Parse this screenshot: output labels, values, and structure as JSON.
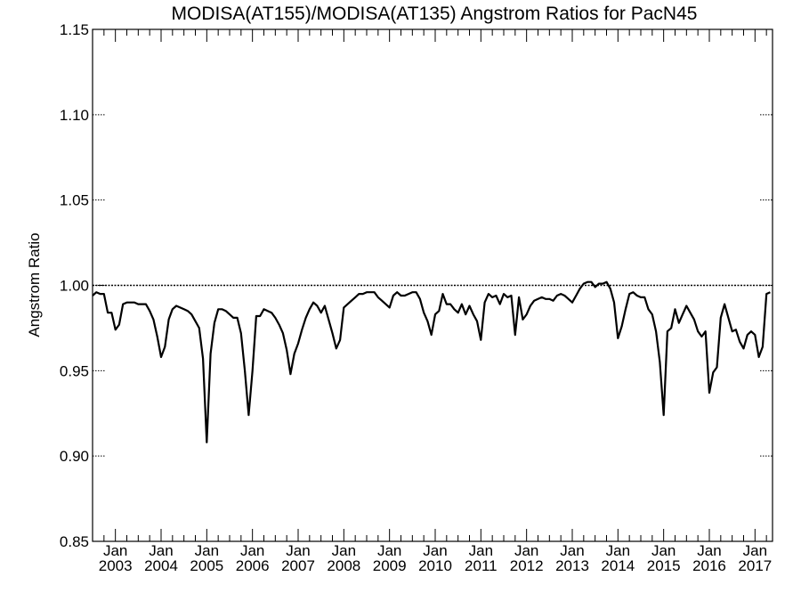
{
  "chart_data": {
    "type": "line",
    "title": "MODISA(AT155)/MODISA(AT135)  Angstrom Ratios for PacN45",
    "xlabel": "",
    "ylabel": "Angstrom Ratio",
    "xlim": [
      "2002-07",
      "2017-04"
    ],
    "ylim": [
      0.85,
      1.15
    ],
    "yticks": [
      "0.85",
      "0.90",
      "0.95",
      "1.00",
      "1.05",
      "1.10",
      "1.15"
    ],
    "ytick_values": [
      0.85,
      0.9,
      0.95,
      1.0,
      1.05,
      1.1,
      1.15
    ],
    "xticks": [
      {
        "date": "2003-01",
        "month": "Jan",
        "year": "2003"
      },
      {
        "date": "2004-01",
        "month": "Jan",
        "year": "2004"
      },
      {
        "date": "2005-01",
        "month": "Jan",
        "year": "2005"
      },
      {
        "date": "2006-01",
        "month": "Jan",
        "year": "2006"
      },
      {
        "date": "2007-01",
        "month": "Jan",
        "year": "2007"
      },
      {
        "date": "2008-01",
        "month": "Jan",
        "year": "2008"
      },
      {
        "date": "2009-01",
        "month": "Jan",
        "year": "2009"
      },
      {
        "date": "2010-01",
        "month": "Jan",
        "year": "2010"
      },
      {
        "date": "2011-01",
        "month": "Jan",
        "year": "2011"
      },
      {
        "date": "2012-01",
        "month": "Jan",
        "year": "2012"
      },
      {
        "date": "2013-01",
        "month": "Jan",
        "year": "2013"
      },
      {
        "date": "2014-01",
        "month": "Jan",
        "year": "2014"
      },
      {
        "date": "2015-01",
        "month": "Jan",
        "year": "2015"
      },
      {
        "date": "2016-01",
        "month": "Jan",
        "year": "2016"
      },
      {
        "date": "2017-01",
        "month": "Jan",
        "year": "2017"
      }
    ],
    "reference_line": 1.0,
    "grid": false,
    "series": [
      {
        "color": "#000000",
        "points": [
          [
            "2002-07",
            0.994
          ],
          [
            "2002-08",
            0.996
          ],
          [
            "2002-09",
            0.995
          ],
          [
            "2002-10",
            0.995
          ],
          [
            "2002-11",
            0.984
          ],
          [
            "2002-12",
            0.984
          ],
          [
            "2003-01",
            0.974
          ],
          [
            "2003-02",
            0.977
          ],
          [
            "2003-03",
            0.989
          ],
          [
            "2003-04",
            0.99
          ],
          [
            "2003-05",
            0.99
          ],
          [
            "2003-06",
            0.99
          ],
          [
            "2003-07",
            0.989
          ],
          [
            "2003-08",
            0.989
          ],
          [
            "2003-09",
            0.989
          ],
          [
            "2003-10",
            0.985
          ],
          [
            "2003-11",
            0.98
          ],
          [
            "2003-12",
            0.97
          ],
          [
            "2004-01",
            0.958
          ],
          [
            "2004-02",
            0.964
          ],
          [
            "2004-03",
            0.98
          ],
          [
            "2004-04",
            0.986
          ],
          [
            "2004-05",
            0.988
          ],
          [
            "2004-06",
            0.987
          ],
          [
            "2004-07",
            0.986
          ],
          [
            "2004-08",
            0.985
          ],
          [
            "2004-09",
            0.983
          ],
          [
            "2004-10",
            0.979
          ],
          [
            "2004-11",
            0.975
          ],
          [
            "2004-12",
            0.957
          ],
          [
            "2005-01",
            0.908
          ],
          [
            "2005-02",
            0.96
          ],
          [
            "2005-03",
            0.978
          ],
          [
            "2005-04",
            0.986
          ],
          [
            "2005-05",
            0.986
          ],
          [
            "2005-06",
            0.985
          ],
          [
            "2005-07",
            0.983
          ],
          [
            "2005-08",
            0.981
          ],
          [
            "2005-09",
            0.981
          ],
          [
            "2005-10",
            0.972
          ],
          [
            "2005-11",
            0.95
          ],
          [
            "2005-12",
            0.924
          ],
          [
            "2006-01",
            0.95
          ],
          [
            "2006-02",
            0.982
          ],
          [
            "2006-03",
            0.982
          ],
          [
            "2006-04",
            0.986
          ],
          [
            "2006-05",
            0.985
          ],
          [
            "2006-06",
            0.984
          ],
          [
            "2006-07",
            0.981
          ],
          [
            "2006-08",
            0.977
          ],
          [
            "2006-09",
            0.972
          ],
          [
            "2006-10",
            0.962
          ],
          [
            "2006-11",
            0.948
          ],
          [
            "2006-12",
            0.96
          ],
          [
            "2007-01",
            0.966
          ],
          [
            "2007-02",
            0.974
          ],
          [
            "2007-03",
            0.981
          ],
          [
            "2007-04",
            0.986
          ],
          [
            "2007-05",
            0.99
          ],
          [
            "2007-06",
            0.988
          ],
          [
            "2007-07",
            0.984
          ],
          [
            "2007-08",
            0.988
          ],
          [
            "2007-09",
            0.98
          ],
          [
            "2007-10",
            0.972
          ],
          [
            "2007-11",
            0.963
          ],
          [
            "2007-12",
            0.968
          ],
          [
            "2008-01",
            0.987
          ],
          [
            "2008-02",
            0.989
          ],
          [
            "2008-03",
            0.991
          ],
          [
            "2008-04",
            0.993
          ],
          [
            "2008-05",
            0.995
          ],
          [
            "2008-06",
            0.995
          ],
          [
            "2008-07",
            0.996
          ],
          [
            "2008-08",
            0.996
          ],
          [
            "2008-09",
            0.996
          ],
          [
            "2008-10",
            0.993
          ],
          [
            "2008-11",
            0.991
          ],
          [
            "2008-12",
            0.989
          ],
          [
            "2009-01",
            0.987
          ],
          [
            "2009-02",
            0.994
          ],
          [
            "2009-03",
            0.996
          ],
          [
            "2009-04",
            0.994
          ],
          [
            "2009-05",
            0.994
          ],
          [
            "2009-06",
            0.995
          ],
          [
            "2009-07",
            0.996
          ],
          [
            "2009-08",
            0.996
          ],
          [
            "2009-09",
            0.992
          ],
          [
            "2009-10",
            0.984
          ],
          [
            "2009-11",
            0.979
          ],
          [
            "2009-12",
            0.971
          ],
          [
            "2010-01",
            0.983
          ],
          [
            "2010-02",
            0.985
          ],
          [
            "2010-03",
            0.995
          ],
          [
            "2010-04",
            0.989
          ],
          [
            "2010-05",
            0.989
          ],
          [
            "2010-06",
            0.986
          ],
          [
            "2010-07",
            0.984
          ],
          [
            "2010-08",
            0.989
          ],
          [
            "2010-09",
            0.983
          ],
          [
            "2010-10",
            0.988
          ],
          [
            "2010-11",
            0.983
          ],
          [
            "2010-12",
            0.979
          ],
          [
            "2011-01",
            0.968
          ],
          [
            "2011-02",
            0.99
          ],
          [
            "2011-03",
            0.995
          ],
          [
            "2011-04",
            0.993
          ],
          [
            "2011-05",
            0.994
          ],
          [
            "2011-06",
            0.989
          ],
          [
            "2011-07",
            0.995
          ],
          [
            "2011-08",
            0.993
          ],
          [
            "2011-09",
            0.994
          ],
          [
            "2011-10",
            0.971
          ],
          [
            "2011-11",
            0.993
          ],
          [
            "2011-12",
            0.98
          ],
          [
            "2012-01",
            0.983
          ],
          [
            "2012-02",
            0.988
          ],
          [
            "2012-03",
            0.991
          ],
          [
            "2012-04",
            0.992
          ],
          [
            "2012-05",
            0.993
          ],
          [
            "2012-06",
            0.992
          ],
          [
            "2012-07",
            0.992
          ],
          [
            "2012-08",
            0.991
          ],
          [
            "2012-09",
            0.994
          ],
          [
            "2012-10",
            0.995
          ],
          [
            "2012-11",
            0.994
          ],
          [
            "2012-12",
            0.992
          ],
          [
            "2013-01",
            0.99
          ],
          [
            "2013-02",
            0.994
          ],
          [
            "2013-03",
            0.998
          ],
          [
            "2013-04",
            1.001
          ],
          [
            "2013-05",
            1.002
          ],
          [
            "2013-06",
            1.002
          ],
          [
            "2013-07",
            0.999
          ],
          [
            "2013-08",
            1.001
          ],
          [
            "2013-09",
            1.001
          ],
          [
            "2013-10",
            1.002
          ],
          [
            "2013-11",
            0.998
          ],
          [
            "2013-12",
            0.99
          ],
          [
            "2014-01",
            0.969
          ],
          [
            "2014-02",
            0.976
          ],
          [
            "2014-03",
            0.986
          ],
          [
            "2014-04",
            0.995
          ],
          [
            "2014-05",
            0.996
          ],
          [
            "2014-06",
            0.994
          ],
          [
            "2014-07",
            0.993
          ],
          [
            "2014-08",
            0.993
          ],
          [
            "2014-09",
            0.986
          ],
          [
            "2014-10",
            0.983
          ],
          [
            "2014-11",
            0.973
          ],
          [
            "2014-12",
            0.955
          ],
          [
            "2015-01",
            0.924
          ],
          [
            "2015-02",
            0.973
          ],
          [
            "2015-03",
            0.975
          ],
          [
            "2015-04",
            0.986
          ],
          [
            "2015-05",
            0.978
          ],
          [
            "2015-06",
            0.983
          ],
          [
            "2015-07",
            0.988
          ],
          [
            "2015-08",
            0.984
          ],
          [
            "2015-09",
            0.98
          ],
          [
            "2015-10",
            0.973
          ],
          [
            "2015-11",
            0.97
          ],
          [
            "2015-12",
            0.973
          ],
          [
            "2016-01",
            0.937
          ],
          [
            "2016-02",
            0.949
          ],
          [
            "2016-03",
            0.952
          ],
          [
            "2016-04",
            0.981
          ],
          [
            "2016-05",
            0.989
          ],
          [
            "2016-06",
            0.981
          ],
          [
            "2016-07",
            0.973
          ],
          [
            "2016-08",
            0.974
          ],
          [
            "2016-09",
            0.967
          ],
          [
            "2016-10",
            0.963
          ],
          [
            "2016-11",
            0.971
          ],
          [
            "2016-12",
            0.973
          ],
          [
            "2017-01",
            0.971
          ],
          [
            "2017-02",
            0.958
          ],
          [
            "2017-03",
            0.964
          ],
          [
            "2017-04",
            0.995
          ],
          [
            "2017-05",
            0.996
          ]
        ]
      }
    ]
  }
}
